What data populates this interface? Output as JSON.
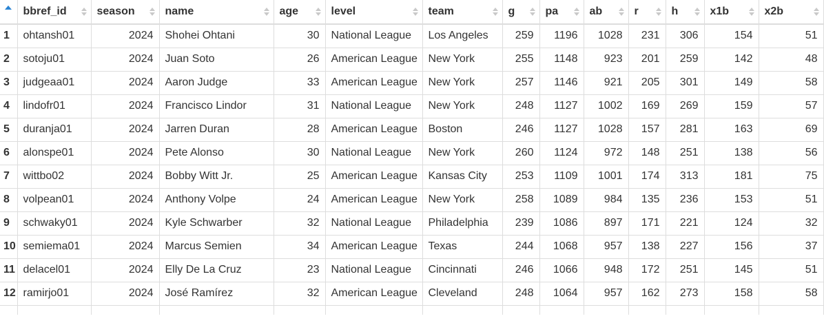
{
  "columns": [
    {
      "key": "bbref_id",
      "label": "bbref_id",
      "align": "left"
    },
    {
      "key": "season",
      "label": "season",
      "align": "right"
    },
    {
      "key": "name",
      "label": "name",
      "align": "left"
    },
    {
      "key": "age",
      "label": "age",
      "align": "right"
    },
    {
      "key": "level",
      "label": "level",
      "align": "left"
    },
    {
      "key": "team",
      "label": "team",
      "align": "left"
    },
    {
      "key": "g",
      "label": "g",
      "align": "right"
    },
    {
      "key": "pa",
      "label": "pa",
      "align": "right"
    },
    {
      "key": "ab",
      "label": "ab",
      "align": "right"
    },
    {
      "key": "r",
      "label": "r",
      "align": "right"
    },
    {
      "key": "h",
      "label": "h",
      "align": "right"
    },
    {
      "key": "x1b",
      "label": "x1b",
      "align": "right"
    },
    {
      "key": "x2b",
      "label": "x2b",
      "align": "right"
    }
  ],
  "rows": [
    {
      "n": "1",
      "bbref_id": "ohtansh01",
      "season": "2024",
      "name": "Shohei Ohtani",
      "age": "30",
      "level": "National League",
      "team": "Los Angeles",
      "g": "259",
      "pa": "1196",
      "ab": "1028",
      "r": "231",
      "h": "306",
      "x1b": "154",
      "x2b": "51"
    },
    {
      "n": "2",
      "bbref_id": "sotoju01",
      "season": "2024",
      "name": "Juan Soto",
      "age": "26",
      "level": "American League",
      "team": "New York",
      "g": "255",
      "pa": "1148",
      "ab": "923",
      "r": "201",
      "h": "259",
      "x1b": "142",
      "x2b": "48"
    },
    {
      "n": "3",
      "bbref_id": "judgeaa01",
      "season": "2024",
      "name": "Aaron Judge",
      "age": "33",
      "level": "American League",
      "team": "New York",
      "g": "257",
      "pa": "1146",
      "ab": "921",
      "r": "205",
      "h": "301",
      "x1b": "149",
      "x2b": "58"
    },
    {
      "n": "4",
      "bbref_id": "lindofr01",
      "season": "2024",
      "name": "Francisco Lindor",
      "age": "31",
      "level": "National League",
      "team": "New York",
      "g": "248",
      "pa": "1127",
      "ab": "1002",
      "r": "169",
      "h": "269",
      "x1b": "159",
      "x2b": "57"
    },
    {
      "n": "5",
      "bbref_id": "duranja01",
      "season": "2024",
      "name": "Jarren Duran",
      "age": "28",
      "level": "American League",
      "team": "Boston",
      "g": "246",
      "pa": "1127",
      "ab": "1028",
      "r": "157",
      "h": "281",
      "x1b": "163",
      "x2b": "69"
    },
    {
      "n": "6",
      "bbref_id": "alonspe01",
      "season": "2024",
      "name": "Pete Alonso",
      "age": "30",
      "level": "National League",
      "team": "New York",
      "g": "260",
      "pa": "1124",
      "ab": "972",
      "r": "148",
      "h": "251",
      "x1b": "138",
      "x2b": "56"
    },
    {
      "n": "7",
      "bbref_id": "wittbo02",
      "season": "2024",
      "name": "Bobby Witt Jr.",
      "age": "25",
      "level": "American League",
      "team": "Kansas City",
      "g": "253",
      "pa": "1109",
      "ab": "1001",
      "r": "174",
      "h": "313",
      "x1b": "181",
      "x2b": "75"
    },
    {
      "n": "8",
      "bbref_id": "volpean01",
      "season": "2024",
      "name": "Anthony Volpe",
      "age": "24",
      "level": "American League",
      "team": "New York",
      "g": "258",
      "pa": "1089",
      "ab": "984",
      "r": "135",
      "h": "236",
      "x1b": "153",
      "x2b": "51"
    },
    {
      "n": "9",
      "bbref_id": "schwaky01",
      "season": "2024",
      "name": "Kyle Schwarber",
      "age": "32",
      "level": "National League",
      "team": "Philadelphia",
      "g": "239",
      "pa": "1086",
      "ab": "897",
      "r": "171",
      "h": "221",
      "x1b": "124",
      "x2b": "32"
    },
    {
      "n": "10",
      "bbref_id": "semiema01",
      "season": "2024",
      "name": "Marcus Semien",
      "age": "34",
      "level": "American League",
      "team": "Texas",
      "g": "244",
      "pa": "1068",
      "ab": "957",
      "r": "138",
      "h": "227",
      "x1b": "156",
      "x2b": "37"
    },
    {
      "n": "11",
      "bbref_id": "delacel01",
      "season": "2024",
      "name": "Elly De La Cruz",
      "age": "23",
      "level": "National League",
      "team": "Cincinnati",
      "g": "246",
      "pa": "1066",
      "ab": "948",
      "r": "172",
      "h": "251",
      "x1b": "145",
      "x2b": "51"
    },
    {
      "n": "12",
      "bbref_id": "ramirjo01",
      "season": "2024",
      "name": "José Ramírez",
      "age": "32",
      "level": "American League",
      "team": "Cleveland",
      "g": "248",
      "pa": "1064",
      "ab": "957",
      "r": "162",
      "h": "273",
      "x1b": "158",
      "x2b": "58"
    }
  ],
  "icons": {
    "active_sort": "sort-ascending-icon",
    "column_sort": "sort-both-icon"
  },
  "colors": {
    "active_sort": "#2a84d4",
    "inactive_sort": "#c9c9c9",
    "grid": "#dddddd"
  }
}
